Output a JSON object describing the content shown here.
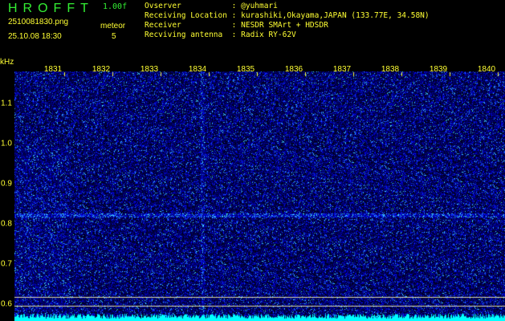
{
  "header": {
    "app_title": "HROFFT",
    "version": "1.00f",
    "filename": "2510081830.png",
    "datetime": "25.10.08 18:30",
    "meteor_label": "meteor",
    "meteor_count": "5"
  },
  "info": [
    {
      "label": "Ovserver           ",
      "value": "@yuhmari"
    },
    {
      "label": "Receiving Location ",
      "value": "kurashiki,Okayama,JAPAN (133.77E, 34.58N)"
    },
    {
      "label": "Receiver           ",
      "value": "NESDR SMArt + HDSDR"
    },
    {
      "label": "Recviving antenna  ",
      "value": "Radix RY-62V"
    }
  ],
  "spectrogram": {
    "y_unit": "kHz",
    "freq_ticks": [
      "1831",
      "1832",
      "1833",
      "1834",
      "1835",
      "1836",
      "1837",
      "1838",
      "1839",
      "1840"
    ],
    "y_ticks": [
      "1.1",
      "1.0",
      "0.9",
      "0.8",
      "0.7",
      "0.6"
    ],
    "label_color": "#ffff33",
    "background_color": "#000060",
    "trace_color": "#00ffff"
  }
}
